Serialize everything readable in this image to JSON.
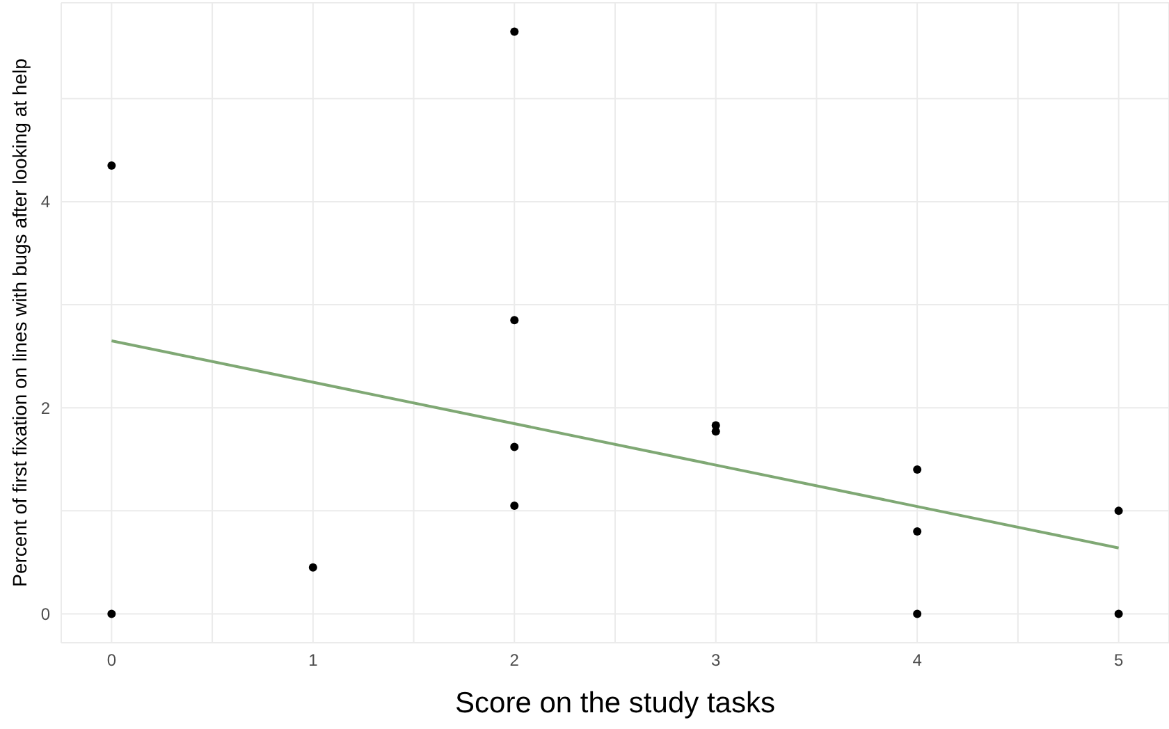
{
  "chart_data": {
    "type": "scatter",
    "xlabel": "Score on the study tasks",
    "ylabel": "Percent of first fixation on lines with bugs after looking at help",
    "xlim": [
      -0.25,
      5.25
    ],
    "xticks": [
      0,
      {
        "value": 0.5,
        "label": null
      },
      1,
      {
        "value": 1.5,
        "label": null
      },
      2,
      {
        "value": 2.5,
        "label": null
      },
      3,
      {
        "value": 3.5,
        "label": null
      },
      4,
      {
        "value": 4.5,
        "label": null
      },
      5
    ],
    "ylim": [
      -0.28,
      5.93
    ],
    "yticks": [
      0,
      {
        "value": 1,
        "label": null
      },
      2,
      {
        "value": 3,
        "label": null
      },
      4,
      {
        "value": 5,
        "label": null
      }
    ],
    "grid": true,
    "series": [
      {
        "marker": "circle",
        "color": "#000000",
        "x": [
          0,
          0,
          1,
          2,
          2,
          2,
          2,
          3,
          3,
          4,
          4,
          4,
          5,
          5
        ],
        "values": [
          4.35,
          0,
          0.45,
          5.65,
          2.85,
          1.62,
          1.05,
          1.83,
          1.77,
          1.4,
          0.8,
          0,
          1.0,
          0
        ]
      },
      {
        "type": "line",
        "color": "#7fa874",
        "x": [
          0,
          5
        ],
        "values": [
          2.65,
          0.64
        ]
      }
    ]
  }
}
